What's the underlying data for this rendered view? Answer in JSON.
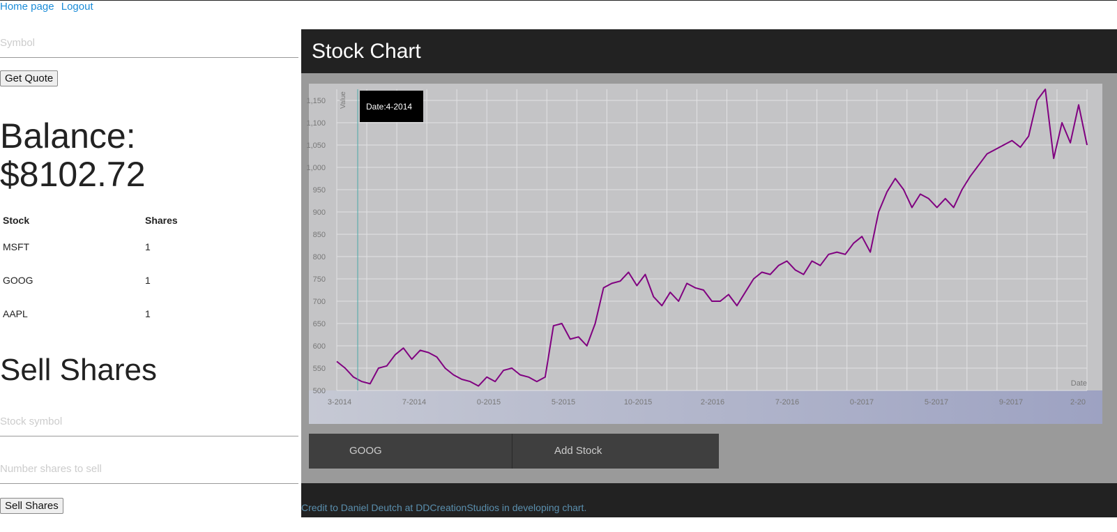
{
  "nav": {
    "home": "Home page",
    "logout": "Logout"
  },
  "quote": {
    "symbol_placeholder": "Symbol",
    "button": "Get Quote"
  },
  "balance": {
    "label": "Balance:",
    "value": "$8102.72"
  },
  "holdings": {
    "headers": [
      "Stock",
      "Shares"
    ],
    "rows": [
      {
        "stock": "MSFT",
        "shares": "1"
      },
      {
        "stock": "GOOG",
        "shares": "1"
      },
      {
        "stock": "AAPL",
        "shares": "1"
      }
    ]
  },
  "sell": {
    "title": "Sell Shares",
    "symbol_placeholder": "Stock symbol",
    "shares_placeholder": "Number shares to sell",
    "button": "Sell Shares"
  },
  "chart_panel": {
    "title": "Stock Chart",
    "tooltip": "Date:4-2014"
  },
  "controls": {
    "symbol": "GOOG",
    "add": "Add Stock"
  },
  "footer": {
    "credit": "Credit to Daniel Deutch at DDCreationStudios in developing chart."
  },
  "colors": {
    "line": "#800080",
    "header": "#222222",
    "chart_bg": "#c4c4c6"
  },
  "chart_data": {
    "type": "line",
    "xlabel": "Date",
    "ylabel": "Value",
    "ylim": [
      500,
      1175
    ],
    "yticks": [
      500,
      550,
      600,
      650,
      700,
      750,
      800,
      850,
      900,
      950,
      1000,
      1050,
      1100,
      1150
    ],
    "xticks": [
      "3-2014",
      "7-2014",
      "0-2015",
      "5-2015",
      "10-2015",
      "2-2016",
      "7-2016",
      "0-2017",
      "5-2017",
      "9-2017",
      "2-20"
    ],
    "grid": true,
    "series": [
      {
        "values": [
          565,
          550,
          530,
          520,
          515,
          550,
          555,
          580,
          595,
          570,
          590,
          585,
          575,
          550,
          535,
          525,
          520,
          510,
          530,
          520,
          545,
          550,
          535,
          530,
          520,
          530,
          645,
          650,
          615,
          620,
          600,
          650,
          730,
          740,
          745,
          765,
          735,
          760,
          710,
          690,
          720,
          700,
          740,
          730,
          725,
          700,
          700,
          715,
          690,
          720,
          750,
          765,
          760,
          780,
          790,
          770,
          760,
          790,
          780,
          805,
          810,
          805,
          830,
          845,
          810,
          900,
          945,
          975,
          950,
          910,
          940,
          930,
          910,
          930,
          910,
          950,
          980,
          1005,
          1030,
          1040,
          1050,
          1060,
          1045,
          1070,
          1150,
          1175,
          1020,
          1100,
          1055,
          1140,
          1050
        ]
      }
    ]
  }
}
